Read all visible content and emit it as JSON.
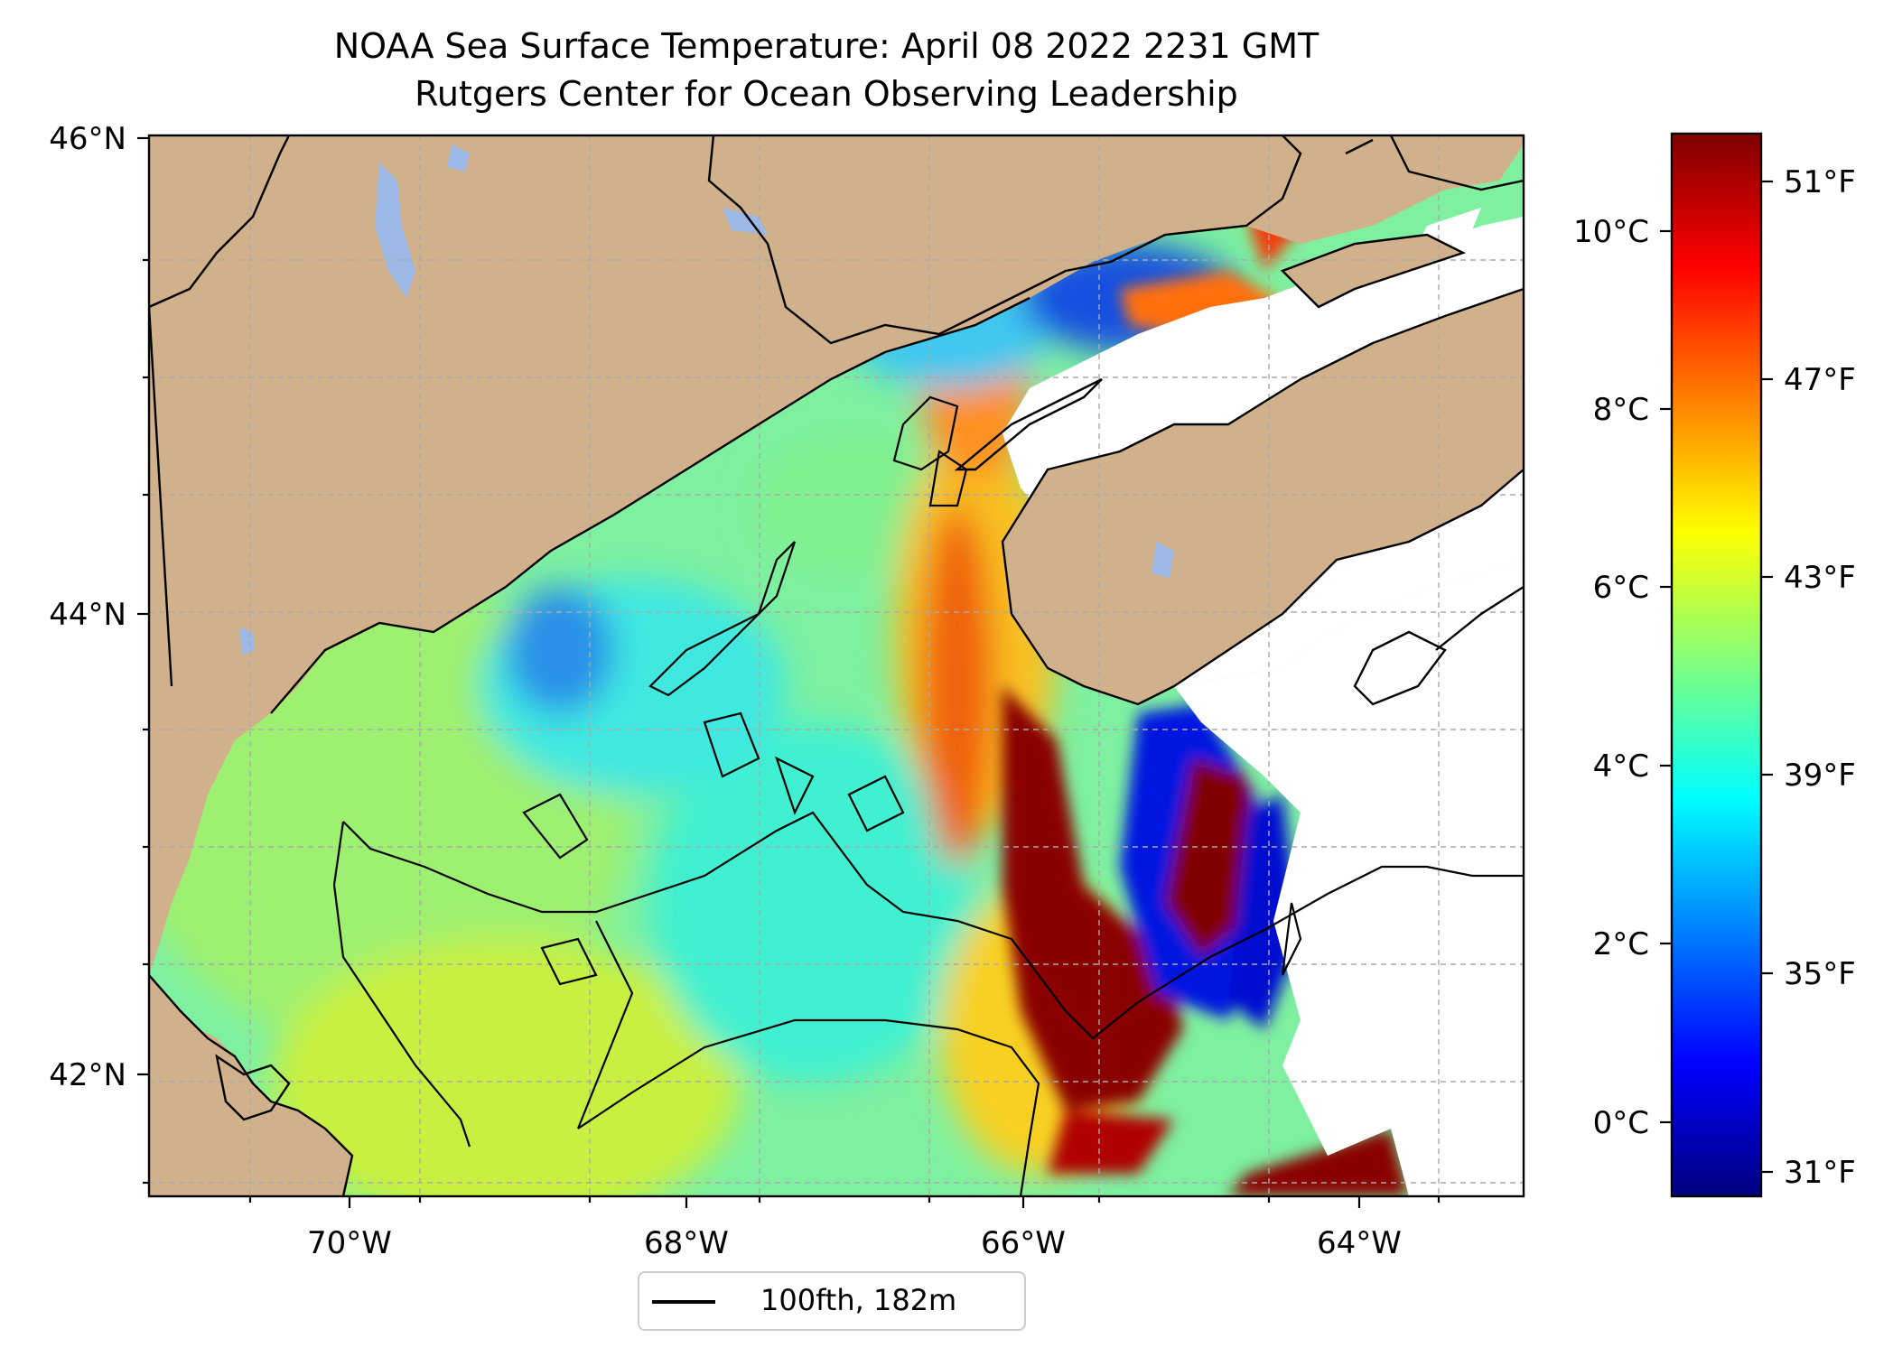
{
  "title_line1": "NOAA Sea Surface Temperature: April 08 2022 2231 GMT",
  "title_line2": "Rutgers Center for Ocean Observing Leadership",
  "colors": {
    "land": "#d1b18b",
    "lake": "#9cb8e6",
    "nodata": "#ffffff",
    "coast": "#000000",
    "grid": "#aaaaaa"
  },
  "map": {
    "lon_range": [
      -71.1,
      -63.0
    ],
    "lat_range": [
      41.5,
      46.0
    ],
    "lon_ticks": [
      "70°W",
      "68°W",
      "66°W",
      "64°W"
    ],
    "lat_ticks": [
      "46°N",
      "44°N",
      "42°N"
    ]
  },
  "legend": {
    "label": "100fth, 182m"
  },
  "colorbar": {
    "celsius_ticks": [
      "10°C",
      "8°C",
      "6°C",
      "4°C",
      "2°C",
      "0°C"
    ],
    "fahrenheit_ticks": [
      "51°F",
      "47°F",
      "43°F",
      "39°F",
      "35°F",
      "31°F"
    ],
    "colormap": "jet"
  }
}
